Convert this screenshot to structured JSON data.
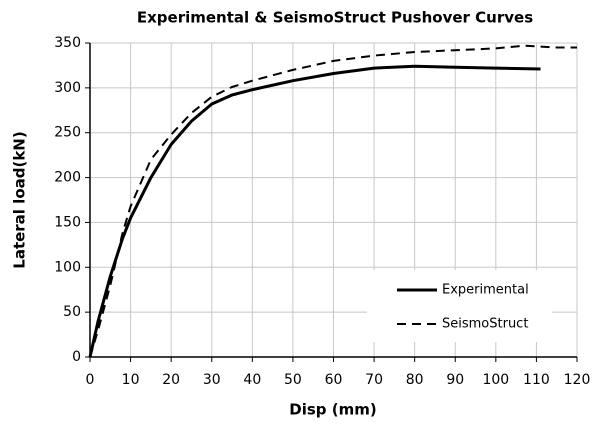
{
  "chart_data": {
    "type": "line",
    "title": "Experimental & SeismoStruct Pushover Curves",
    "xlabel": "Disp (mm)",
    "ylabel": "Lateral load(kN)",
    "xlim": [
      0,
      120
    ],
    "xticks": [
      0,
      10,
      20,
      30,
      40,
      50,
      60,
      70,
      80,
      90,
      100,
      110,
      120
    ],
    "ylim": [
      0,
      350
    ],
    "yticks": [
      0,
      50,
      100,
      150,
      200,
      250,
      300,
      350
    ],
    "grid": true,
    "legend": "lower right",
    "series": [
      {
        "name": "Experimental",
        "color": "#000000",
        "style": "solid",
        "x": [
          0,
          2,
          5,
          8,
          10,
          15,
          20,
          25,
          30,
          35,
          40,
          50,
          60,
          70,
          80,
          90,
          100,
          111
        ],
        "values": [
          0,
          40,
          90,
          132,
          155,
          200,
          237,
          263,
          282,
          292,
          298,
          308,
          316,
          322,
          324,
          323,
          322,
          321
        ]
      },
      {
        "name": "SeismoStruct",
        "color": "#000000",
        "style": "dashed",
        "x": [
          0,
          2,
          5,
          8,
          10,
          15,
          20,
          25,
          30,
          35,
          40,
          50,
          60,
          70,
          80,
          90,
          100,
          107,
          115,
          120
        ],
        "values": [
          0,
          30,
          80,
          138,
          168,
          220,
          248,
          272,
          290,
          301,
          308,
          320,
          330,
          336,
          340,
          342,
          344,
          347,
          345,
          345
        ]
      }
    ]
  }
}
